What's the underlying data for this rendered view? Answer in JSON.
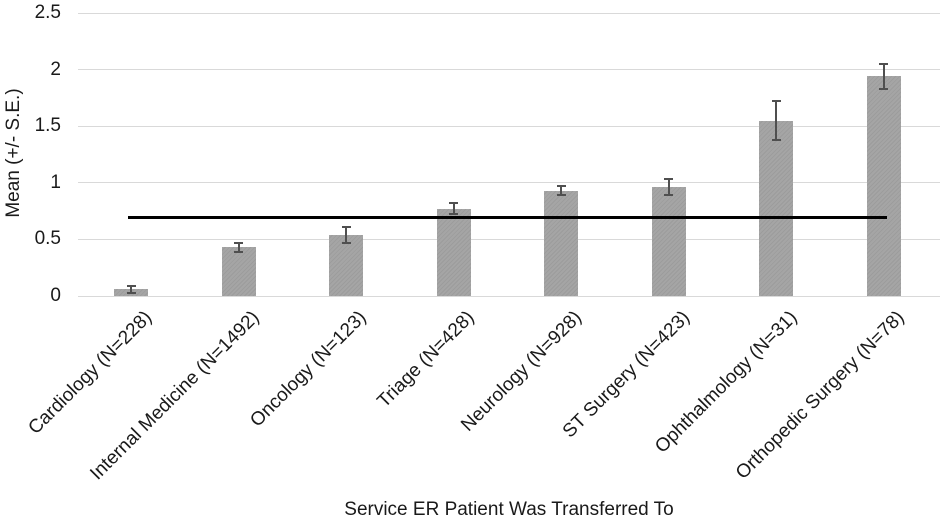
{
  "chart_data": {
    "type": "bar",
    "title": "",
    "xlabel": "Service ER Patient Was Transferred To",
    "ylabel": "Mean (+/- S.E.)",
    "ylim": [
      0,
      2.5
    ],
    "ytick_labels": [
      "0",
      "0.5",
      "1",
      "1.5",
      "2",
      "2.5"
    ],
    "ytick_values": [
      0,
      0.5,
      1,
      1.5,
      2,
      2.5
    ],
    "grid": true,
    "legend_position": "none",
    "categories": [
      "Cardiology (N=228)",
      "Internal Medicine (N=1492)",
      "Oncology (N=123)",
      "Triage (N=428)",
      "Neurology (N=928)",
      "ST Surgery (N=423)",
      "Ophthalmology (N=31)",
      "Orthopedic Surgery (N=78)"
    ],
    "values": [
      0.06,
      0.43,
      0.54,
      0.77,
      0.93,
      0.96,
      1.55,
      1.94
    ],
    "standard_errors": [
      0.03,
      0.04,
      0.07,
      0.05,
      0.04,
      0.07,
      0.17,
      0.11
    ],
    "reference_line_value": 0.69,
    "colors": {
      "bar": "#a5a5a5",
      "bar_pattern": "#9c9c9c",
      "error_bar": "#4f4f4f",
      "gridline": "#d9d9d9",
      "axis_line": "#d9d9d9",
      "reference_line": "#000000",
      "text": "#1a1a1a"
    }
  }
}
